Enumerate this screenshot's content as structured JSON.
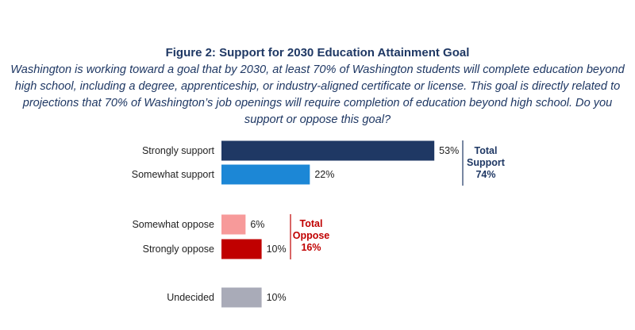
{
  "chart_data": {
    "type": "bar",
    "orientation": "horizontal",
    "title": "Figure 2: Support for 2030 Education Attainment Goal",
    "subtitle": "Washington is working toward a goal that by 2030, at least 70% of Washington students will complete education beyond high school, including a degree, apprenticeship, or industry-aligned certificate or license. This goal is directly related to projections that 70% of Washington’s job openings will require completion of education beyond high school. Do you support or oppose this goal?",
    "categories": [
      "Strongly support",
      "Somewhat support",
      "Somewhat oppose",
      "Strongly oppose",
      "Undecided"
    ],
    "values": [
      53,
      22,
      6,
      10,
      10
    ],
    "value_labels": [
      "53%",
      "22%",
      "6%",
      "10%",
      "10%"
    ],
    "colors": [
      "#1f3864",
      "#1c87d6",
      "#f79a9a",
      "#c00000",
      "#a9abb8"
    ],
    "grid": false,
    "groups": [
      {
        "label": [
          "Total",
          "Support",
          "74%"
        ],
        "color": "#1f3864"
      },
      {
        "label": [
          "Total",
          "Oppose",
          "16%"
        ],
        "color": "#c00000"
      }
    ]
  }
}
